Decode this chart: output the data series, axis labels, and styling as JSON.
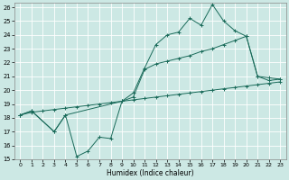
{
  "xlabel": "Humidex (Indice chaleur)",
  "bg_color": "#cce8e4",
  "line_color": "#1a6b5a",
  "grid_color": "#ffffff",
  "xlim": [
    -0.5,
    23.5
  ],
  "ylim": [
    15,
    26.3
  ],
  "xticks": [
    0,
    1,
    2,
    3,
    4,
    5,
    6,
    7,
    8,
    9,
    10,
    11,
    12,
    13,
    14,
    15,
    16,
    17,
    18,
    19,
    20,
    21,
    22,
    23
  ],
  "yticks": [
    15,
    16,
    17,
    18,
    19,
    20,
    21,
    22,
    23,
    24,
    25,
    26
  ],
  "line1_x": [
    0,
    1,
    2,
    3,
    4,
    5,
    6,
    7,
    8,
    9,
    10,
    11,
    12,
    13,
    14,
    15,
    16,
    17,
    18,
    19,
    20,
    21,
    22,
    23
  ],
  "line1_y": [
    18.2,
    18.4,
    18.5,
    18.6,
    18.7,
    18.8,
    18.9,
    19.0,
    19.1,
    19.2,
    19.3,
    19.4,
    19.5,
    19.6,
    19.7,
    19.8,
    19.9,
    20.0,
    20.1,
    20.2,
    20.3,
    20.4,
    20.5,
    20.6
  ],
  "line2_x": [
    0,
    1,
    3,
    4,
    5,
    6,
    7,
    8,
    9,
    10,
    11,
    12,
    13,
    14,
    15,
    16,
    17,
    18,
    19,
    20,
    21,
    22,
    23
  ],
  "line2_y": [
    18.2,
    18.5,
    17.0,
    18.2,
    15.2,
    15.6,
    16.6,
    16.5,
    19.2,
    19.8,
    21.6,
    23.3,
    24.0,
    24.2,
    25.2,
    24.7,
    26.2,
    25.0,
    24.3,
    23.9,
    21.0,
    20.9,
    20.8
  ],
  "line3_x": [
    0,
    1,
    3,
    4,
    9,
    10,
    11,
    12,
    13,
    14,
    15,
    16,
    17,
    18,
    19,
    20,
    21,
    22,
    23
  ],
  "line3_y": [
    18.2,
    18.5,
    17.0,
    18.2,
    19.2,
    19.5,
    21.5,
    21.9,
    22.1,
    22.3,
    22.5,
    22.8,
    23.0,
    23.3,
    23.6,
    23.9,
    21.0,
    20.7,
    20.8
  ]
}
